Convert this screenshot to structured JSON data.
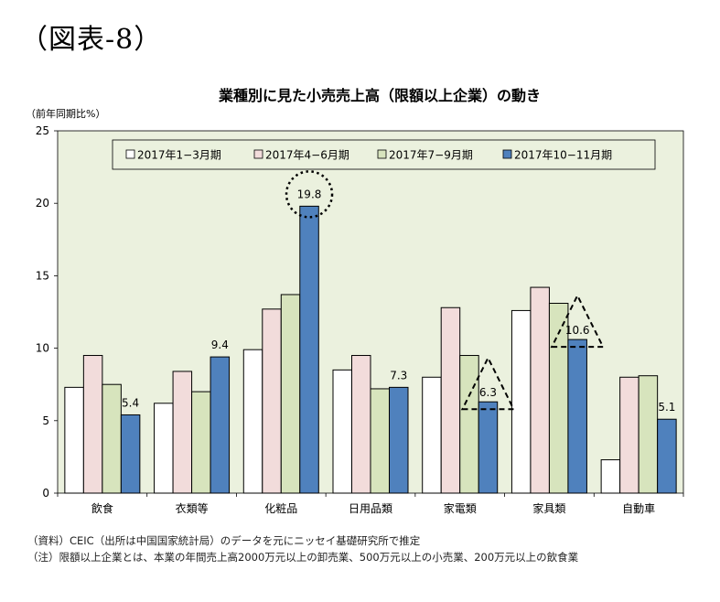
{
  "figure_label": "（図表-8）",
  "notes": [
    "（資料）CEIC（出所は中国国家統計局）のデータを元にニッセイ基礎研究所で推定",
    "（注）限額以上企業とは、本業の年間売上高2000万元以上の卸売業、500万元以上の小売業、200万元以上の飲食業"
  ],
  "chart_data": {
    "type": "bar",
    "title": "業種別に見た小売売上高（限額以上企業）の動き",
    "ylabel": "（前年同期比%）",
    "xlabel": "",
    "ylim": [
      0,
      25
    ],
    "yticks": [
      0,
      5,
      10,
      15,
      20,
      25
    ],
    "grid": false,
    "legend_position": "top",
    "categories": [
      "飲食",
      "衣類等",
      "化粧品",
      "日用品類",
      "家電類",
      "家具類",
      "自動車"
    ],
    "series": [
      {
        "name": "2017年1−3月期",
        "color": "#ffffff",
        "values": [
          7.3,
          6.2,
          9.9,
          8.5,
          8.0,
          12.6,
          2.3
        ]
      },
      {
        "name": "2017年4−6月期",
        "color": "#f2dcdb",
        "values": [
          9.5,
          8.4,
          12.7,
          9.5,
          12.8,
          14.2,
          8.0
        ]
      },
      {
        "name": "2017年7−9月期",
        "color": "#d7e4bd",
        "values": [
          7.5,
          7.0,
          13.7,
          7.2,
          9.5,
          13.1,
          8.1
        ]
      },
      {
        "name": "2017年10−11月期",
        "color": "#4f81bd",
        "values": [
          5.4,
          9.4,
          19.8,
          7.3,
          6.3,
          10.6,
          5.1
        ]
      }
    ],
    "data_labels": [
      {
        "category_index": 0,
        "text": "5.4",
        "marker": "none"
      },
      {
        "category_index": 1,
        "text": "9.4",
        "marker": "none"
      },
      {
        "category_index": 2,
        "text": "19.8",
        "marker": "dotted-circle"
      },
      {
        "category_index": 3,
        "text": "7.3",
        "marker": "none"
      },
      {
        "category_index": 4,
        "text": "6.3",
        "marker": "dashed-triangle"
      },
      {
        "category_index": 5,
        "text": "10.6",
        "marker": "dashed-triangle"
      },
      {
        "category_index": 6,
        "text": "5.1",
        "marker": "none"
      }
    ],
    "colors": {
      "plot_background": "#ebf1de",
      "border": "#000000",
      "bar_stroke": "#000000"
    }
  }
}
